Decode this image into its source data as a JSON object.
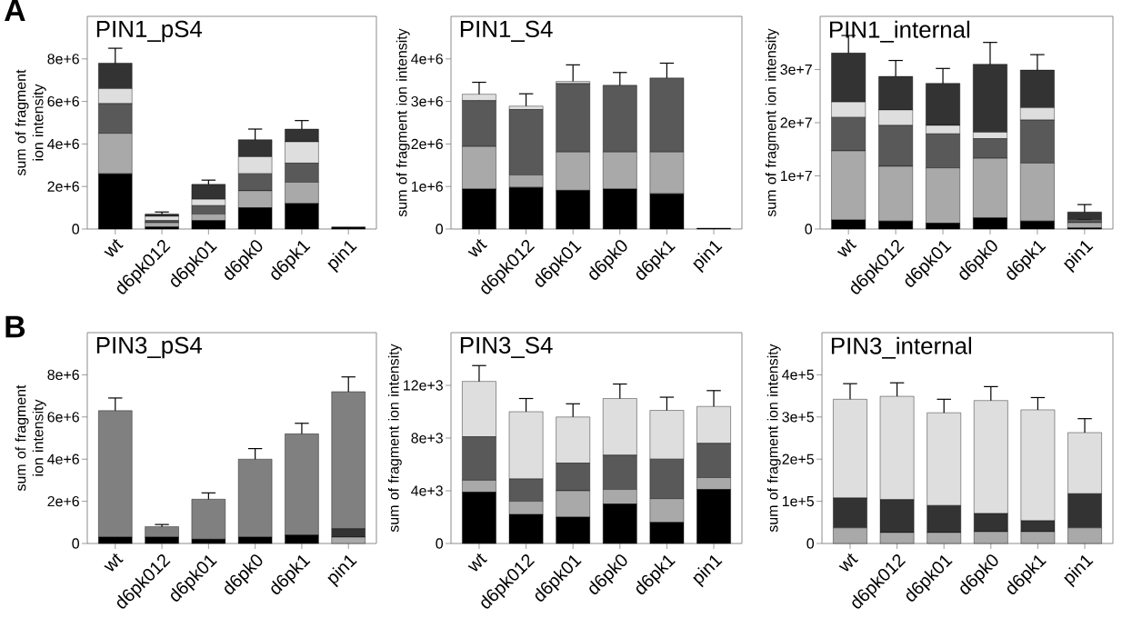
{
  "chart_data": [
    {
      "type": "bar",
      "stacked": true,
      "title": "PIN1_pS4",
      "ylabel": "sum of fragment ion intensity",
      "annotations": [
        "A"
      ],
      "categories": [
        "wt",
        "d6pk012",
        "d6pk01",
        "d6pk0",
        "d6pk1",
        "pin1"
      ],
      "ylim": [
        0,
        10000000
      ],
      "yticks": [
        0,
        {
          "value": 2000000,
          "label": "2e+6"
        },
        {
          "value": 4000000,
          "label": "4e+6"
        },
        {
          "value": 6000000,
          "label": "6e+6"
        },
        {
          "value": 8000000,
          "label": "8e+6"
        }
      ],
      "series": [
        {
          "color": "#000000",
          "values": [
            2600000,
            100000,
            400000,
            1000000,
            1200000,
            100000
          ]
        },
        {
          "color": "#a9a9a9",
          "values": [
            1900000,
            200000,
            300000,
            800000,
            1000000,
            0
          ]
        },
        {
          "color": "#595959",
          "values": [
            1400000,
            100000,
            400000,
            800000,
            900000,
            0
          ]
        },
        {
          "color": "#dedede",
          "values": [
            700000,
            200000,
            300000,
            800000,
            1000000,
            0
          ]
        },
        {
          "color": "#333333",
          "values": [
            1200000,
            100000,
            700000,
            800000,
            600000,
            0
          ],
          "errors": [
            700000,
            100000,
            200000,
            500000,
            400000,
            null
          ]
        }
      ]
    },
    {
      "type": "bar",
      "stacked": true,
      "title": "PIN1_S4",
      "ylabel": "sum of fragment ion intensity",
      "categories": [
        "wt",
        "d6pk012",
        "d6pk01",
        "d6pk0",
        "d6pk1",
        "pin1"
      ],
      "ylim": [
        0,
        5000000
      ],
      "yticks": [
        0,
        {
          "value": 1000000,
          "label": "1e+6"
        },
        {
          "value": 2000000,
          "label": "2e+6"
        },
        {
          "value": 3000000,
          "label": "3e+6"
        },
        {
          "value": 4000000,
          "label": "4e+6"
        }
      ],
      "series": [
        {
          "color": "#000000",
          "values": [
            940000,
            980000,
            910000,
            940000,
            830000,
            20000
          ]
        },
        {
          "color": "#a9a9a9",
          "values": [
            1000000,
            290000,
            900000,
            870000,
            980000,
            0
          ]
        },
        {
          "color": "#595959",
          "values": [
            1080000,
            1540000,
            1610000,
            1570000,
            1740000,
            0
          ]
        },
        {
          "color": "#dedede",
          "values": [
            150000,
            80000,
            50000,
            0,
            0,
            0
          ],
          "errors": [
            280000,
            290000,
            390000,
            300000,
            350000,
            null
          ]
        }
      ]
    },
    {
      "type": "bar",
      "stacked": true,
      "title": "PIN1_internal",
      "ylabel": "sum of fragment ion intensity",
      "categories": [
        "wt",
        "d6pk012",
        "d6pk01",
        "d6pk0",
        "d6pk1",
        "pin1"
      ],
      "ylim": [
        0,
        40000000
      ],
      "yticks": [
        0,
        {
          "value": 10000000,
          "label": "1e+7"
        },
        {
          "value": 20000000,
          "label": "2e+7"
        },
        {
          "value": 30000000,
          "label": "3e+7"
        }
      ],
      "series": [
        {
          "color": "#000000",
          "values": [
            1700000,
            1500000,
            1100000,
            2100000,
            1500000,
            200000
          ]
        },
        {
          "color": "#a9a9a9",
          "values": [
            13000000,
            10300000,
            10400000,
            11200000,
            10900000,
            1000000
          ]
        },
        {
          "color": "#595959",
          "values": [
            6300000,
            7700000,
            6400000,
            3700000,
            8100000,
            600000
          ]
        },
        {
          "color": "#dedede",
          "values": [
            2900000,
            2900000,
            1600000,
            1200000,
            2300000,
            null
          ]
        },
        {
          "color": "#333333",
          "values": [
            9200000,
            6300000,
            7900000,
            12800000,
            7100000,
            1400000
          ],
          "errors": [
            3300000,
            3000000,
            2800000,
            4100000,
            2900000,
            1400000
          ]
        }
      ]
    },
    {
      "type": "bar",
      "stacked": true,
      "title": "PIN3_pS4",
      "ylabel": "sum of fragment ion intensity",
      "annotations": [
        "B"
      ],
      "categories": [
        "wt",
        "d6pk012",
        "d6pk01",
        "d6pk0",
        "d6pk1",
        "pin1"
      ],
      "ylim": [
        0,
        10000000
      ],
      "yticks": [
        0,
        {
          "value": 2000000,
          "label": "2e+6"
        },
        {
          "value": 4000000,
          "label": "4e+6"
        },
        {
          "value": 6000000,
          "label": "6e+6"
        },
        {
          "value": 8000000,
          "label": "8e+6"
        }
      ],
      "series": [
        {
          "color": "#000000",
          "values": [
            300000,
            300000,
            200000,
            300000,
            400000,
            0
          ]
        },
        {
          "color": "#a9a9a9",
          "values": [
            0,
            0,
            0,
            0,
            0,
            300000
          ]
        },
        {
          "color": "#333333",
          "values": [
            0,
            0,
            0,
            0,
            0,
            400000
          ]
        },
        {
          "color": "#808080",
          "values": [
            6000000,
            500000,
            1900000,
            3700000,
            4800000,
            6500000
          ],
          "errors": [
            600000,
            100000,
            300000,
            500000,
            500000,
            700000
          ]
        }
      ]
    },
    {
      "type": "bar",
      "stacked": true,
      "title": "PIN3_S4",
      "ylabel": "sum of fragment ion intensity",
      "categories": [
        "wt",
        "d6pk012",
        "d6pk01",
        "d6pk0",
        "d6pk1",
        "pin1"
      ],
      "ylim": [
        0,
        16000
      ],
      "yticks": [
        0,
        {
          "value": 4000,
          "label": "4e+3"
        },
        {
          "value": 8000,
          "label": "8e+3"
        },
        {
          "value": 12000,
          "label": "12e+3"
        }
      ],
      "series": [
        {
          "color": "#000000",
          "values": [
            3900,
            2200,
            2000,
            3000,
            1600,
            4100
          ]
        },
        {
          "color": "#a9a9a9",
          "values": [
            900,
            1000,
            2000,
            1100,
            1800,
            900
          ]
        },
        {
          "color": "#595959",
          "values": [
            3300,
            1700,
            2100,
            2600,
            3000,
            2600
          ]
        },
        {
          "color": "#dedede",
          "values": [
            4200,
            5100,
            3500,
            4300,
            3700,
            2800
          ],
          "errors": [
            1200,
            1000,
            1000,
            1100,
            1000,
            1200
          ]
        }
      ]
    },
    {
      "type": "bar",
      "stacked": true,
      "title": "PIN3_internal",
      "ylabel": "sum of fragment ion intensity",
      "categories": [
        "wt",
        "d6pk012",
        "d6pk01",
        "d6pk0",
        "d6pk1",
        "pin1"
      ],
      "ylim": [
        0,
        500000
      ],
      "yticks": [
        0,
        {
          "value": 100000,
          "label": "1e+5"
        },
        {
          "value": 200000,
          "label": "2e+5"
        },
        {
          "value": 300000,
          "label": "3e+5"
        },
        {
          "value": 400000,
          "label": "4e+5"
        }
      ],
      "series": [
        {
          "color": "#a9a9a9",
          "values": [
            37000,
            26000,
            26000,
            28000,
            28000,
            37000
          ]
        },
        {
          "color": "#333333",
          "values": [
            71000,
            78000,
            64000,
            43000,
            26000,
            81000
          ]
        },
        {
          "color": "#dedede",
          "values": [
            234000,
            245000,
            220000,
            268000,
            263000,
            145000
          ],
          "errors": [
            37000,
            32000,
            32000,
            33000,
            29000,
            33000
          ]
        }
      ]
    }
  ]
}
